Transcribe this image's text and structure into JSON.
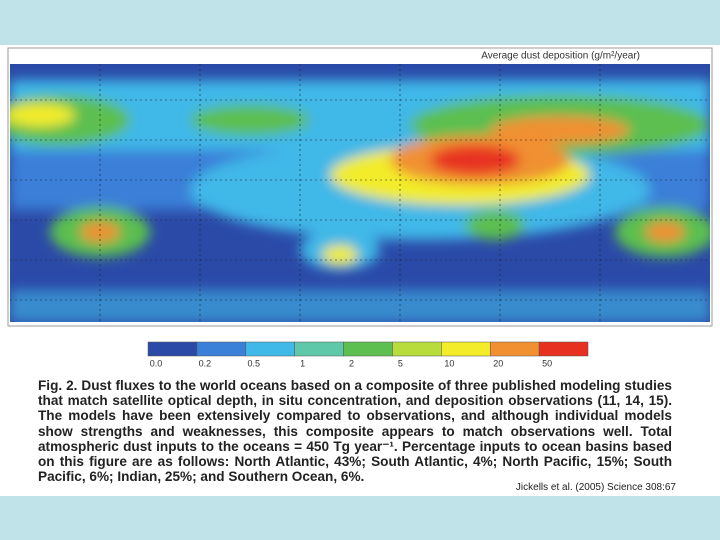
{
  "title": "Average dust deposition (g/m²/year)",
  "colorbar": {
    "labels": [
      "0.0",
      "0.2",
      "0.5",
      "1",
      "2",
      "5",
      "10",
      "20",
      "50"
    ],
    "colors": [
      "#2b4aa8",
      "#3a7fd8",
      "#40b8e8",
      "#5ec8a8",
      "#5cbf50",
      "#b8dc3c",
      "#f2ec2a",
      "#f09030",
      "#e83020"
    ]
  },
  "caption": {
    "label": "Fig. 2.",
    "text": "Dust fluxes to the world oceans based on a composite of three published modeling studies that match satellite optical depth, in situ concentration, and deposition observations (11, 14, 15). The models have been extensively compared to observations, and although individual models show strengths and weaknesses, this composite appears to match observations well. Total atmospheric dust inputs to the oceans = 450 Tg year⁻¹. Percentage inputs to ocean basins based on this figure are as follows: North Atlantic, 43%; South Atlantic, 4%; North Pacific, 15%; South Pacific, 6%; Indian, 25%; and Southern Ocean, 6%."
  },
  "credit": "Jickells et al. (2005) Science 308:67"
}
